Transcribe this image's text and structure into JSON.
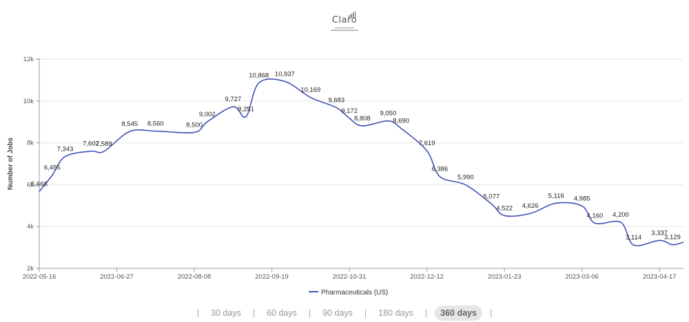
{
  "logo": {
    "text": "Claro"
  },
  "range_selector": {
    "options": [
      "30 days",
      "60 days",
      "90 days",
      "180 days",
      "360 days"
    ],
    "active": "360 days",
    "separator": "|"
  },
  "chart_data": {
    "type": "line",
    "title": "",
    "ylabel": "Number of Jobs",
    "xlabel": "",
    "ylim": [
      2000,
      12000
    ],
    "yticks": [
      2000,
      4000,
      6000,
      8000,
      10000,
      12000
    ],
    "ytick_labels": [
      "2k",
      "4k",
      "6k",
      "8k",
      "10k",
      "12k"
    ],
    "xlim": [
      "2022-05-16",
      "2023-04-30"
    ],
    "xticks": [
      "2022-05-16",
      "2022-06-27",
      "2022-08-08",
      "2022-09-19",
      "2022-10-31",
      "2022-12-12",
      "2023-01-23",
      "2023-03-06",
      "2023-04-17"
    ],
    "grid": true,
    "legend_position": "bottom",
    "series": [
      {
        "name": "Pharmaceuticals (US)",
        "color": "#3f51b5",
        "points": [
          {
            "x": "2022-05-16",
            "y": 5668,
            "label": "5,668"
          },
          {
            "x": "2022-05-23",
            "y": 6455,
            "label": "6,455"
          },
          {
            "x": "2022-05-30",
            "y": 7343,
            "label": "7,343"
          },
          {
            "x": "2022-06-13",
            "y": 7602,
            "label": "7,602"
          },
          {
            "x": "2022-06-20",
            "y": 7589,
            "label": "7,589"
          },
          {
            "x": "2022-07-04",
            "y": 8545,
            "label": "8,545"
          },
          {
            "x": "2022-07-18",
            "y": 8560,
            "label": "8,560"
          },
          {
            "x": "2022-08-08",
            "y": 8500,
            "label": "8,500"
          },
          {
            "x": "2022-08-15",
            "y": 9002,
            "label": "9,002"
          },
          {
            "x": "2022-08-29",
            "y": 9727,
            "label": "9,727"
          },
          {
            "x": "2022-09-05",
            "y": 9251,
            "label": "9,251"
          },
          {
            "x": "2022-09-12",
            "y": 10868,
            "label": "10,868"
          },
          {
            "x": "2022-09-26",
            "y": 10937,
            "label": "10,937"
          },
          {
            "x": "2022-10-10",
            "y": 10169,
            "label": "10,169"
          },
          {
            "x": "2022-10-24",
            "y": 9683,
            "label": "9,683"
          },
          {
            "x": "2022-10-31",
            "y": 9172,
            "label": "9,172"
          },
          {
            "x": "2022-11-07",
            "y": 8808,
            "label": "8,808"
          },
          {
            "x": "2022-11-21",
            "y": 9050,
            "label": "9,050"
          },
          {
            "x": "2022-11-28",
            "y": 8690,
            "label": "8,690"
          },
          {
            "x": "2022-12-12",
            "y": 7619,
            "label": "7,619"
          },
          {
            "x": "2022-12-19",
            "y": 6386,
            "label": "6,386"
          },
          {
            "x": "2023-01-02",
            "y": 5990,
            "label": "5,990"
          },
          {
            "x": "2023-01-16",
            "y": 5077,
            "label": "5,077"
          },
          {
            "x": "2023-01-23",
            "y": 4522,
            "label": "4,522"
          },
          {
            "x": "2023-02-06",
            "y": 4626,
            "label": "4,626"
          },
          {
            "x": "2023-02-20",
            "y": 5116,
            "label": "5,116"
          },
          {
            "x": "2023-03-06",
            "y": 4985,
            "label": "4,985"
          },
          {
            "x": "2023-03-13",
            "y": 4160,
            "label": "4,160"
          },
          {
            "x": "2023-03-27",
            "y": 4200,
            "label": "4,200"
          },
          {
            "x": "2023-04-03",
            "y": 3114,
            "label": "3,114"
          },
          {
            "x": "2023-04-17",
            "y": 3337,
            "label": "3,337"
          },
          {
            "x": "2023-04-24",
            "y": 3129,
            "label": "3,129"
          },
          {
            "x": "2023-04-30",
            "y": 3250,
            "label": ""
          }
        ]
      }
    ]
  }
}
